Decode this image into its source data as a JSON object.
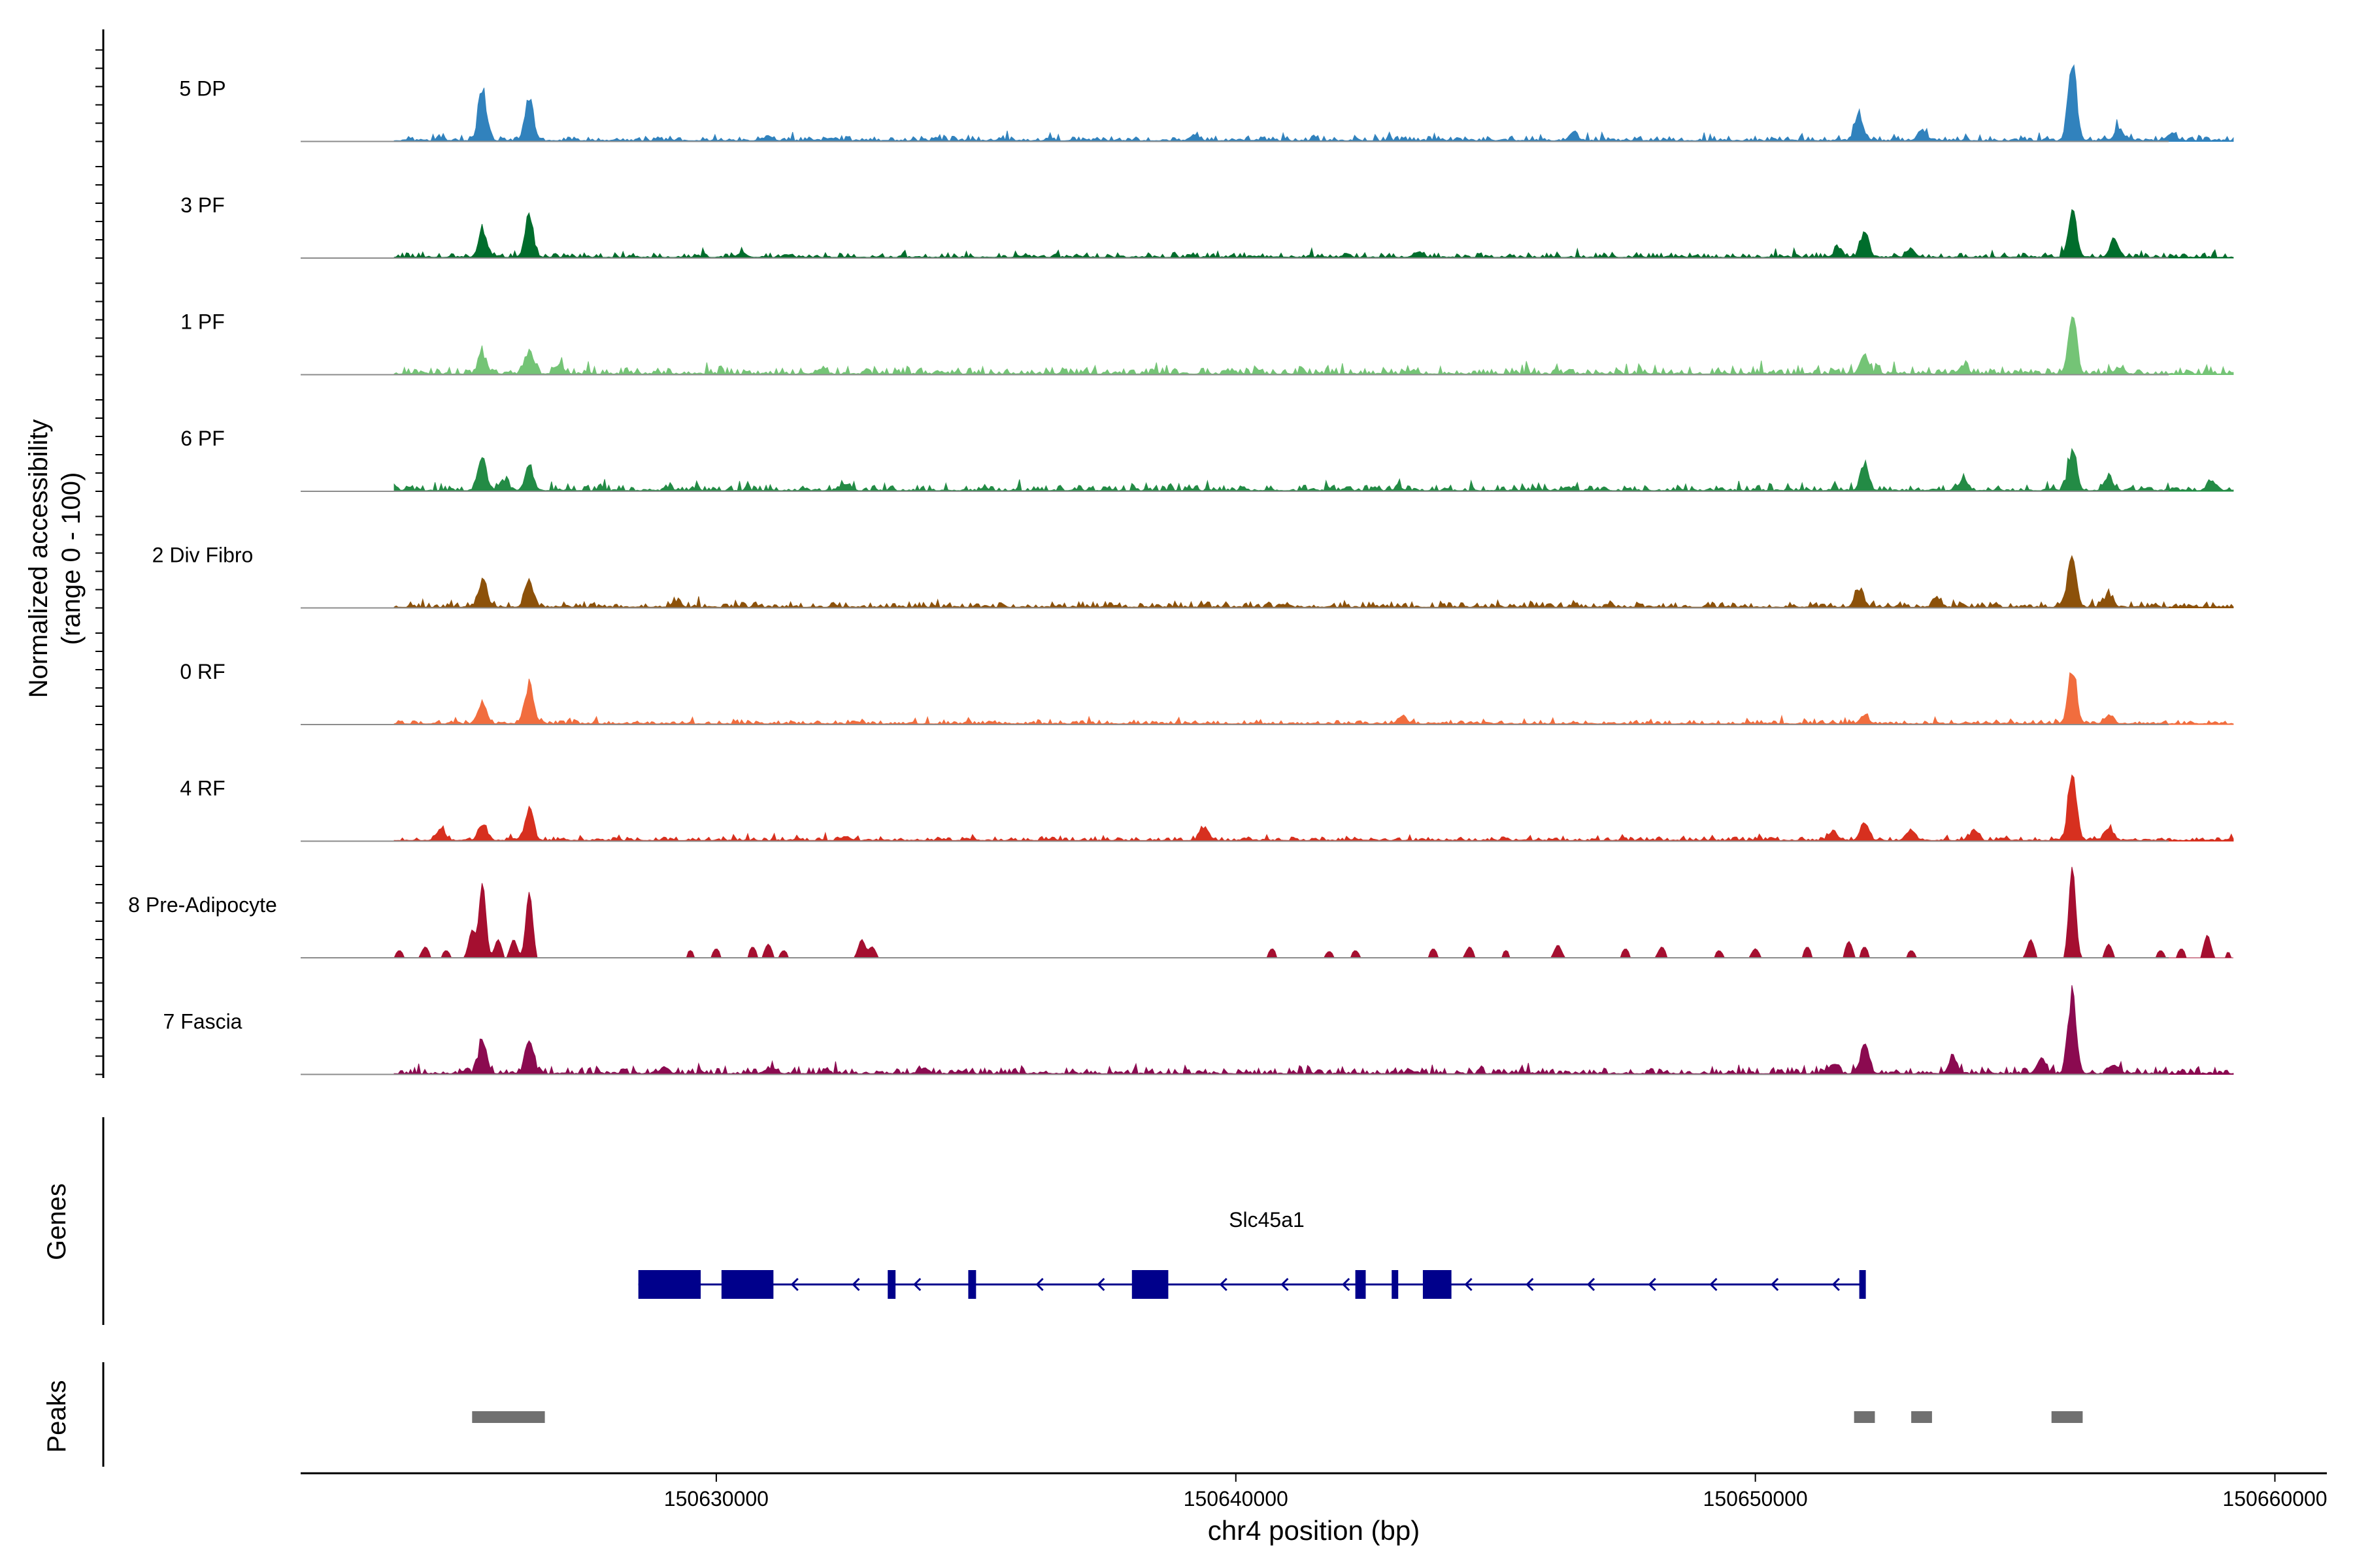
{
  "chart_data": {
    "type": "area",
    "ylabel_line1": "Normalized accessibility",
    "ylabel_line2": "(range 0 - 100)",
    "xlabel": "chr4 position (bp)",
    "xlim": [
      150622000,
      150661000
    ],
    "x_ticks": [
      150630000,
      150640000,
      150650000,
      150660000
    ],
    "x_tick_labels": [
      "150630000",
      "150640000",
      "150650000",
      "150660000"
    ],
    "data_start": 150623800,
    "data_end": 150659200,
    "tracks": [
      {
        "name": "5 DP",
        "color": "#3182bd",
        "noise": 0.05,
        "seed": 11,
        "peaks": [
          [
            150625500,
            0.62
          ],
          [
            150626400,
            0.55
          ],
          [
            150631000,
            0.06
          ],
          [
            150639200,
            0.07
          ],
          [
            150646500,
            0.1
          ],
          [
            150652000,
            0.33
          ],
          [
            150653200,
            0.13
          ],
          [
            150656100,
            1.0
          ],
          [
            150657000,
            0.15
          ],
          [
            150658000,
            0.08
          ]
        ]
      },
      {
        "name": "3 PF",
        "color": "#006d2c",
        "noise": 0.05,
        "seed": 23,
        "peaks": [
          [
            150625500,
            0.33
          ],
          [
            150626400,
            0.52
          ],
          [
            150630500,
            0.06
          ],
          [
            150643500,
            0.07
          ],
          [
            150651600,
            0.12
          ],
          [
            150652100,
            0.32
          ],
          [
            150653000,
            0.1
          ],
          [
            150656100,
            0.62
          ],
          [
            150656900,
            0.2
          ]
        ]
      },
      {
        "name": "1 PF",
        "color": "#74c476",
        "noise": 0.07,
        "seed": 37,
        "peaks": [
          [
            150625500,
            0.24
          ],
          [
            150626400,
            0.26
          ],
          [
            150627000,
            0.08
          ],
          [
            150632000,
            0.05
          ],
          [
            150652100,
            0.24
          ],
          [
            150654000,
            0.1
          ],
          [
            150656100,
            0.7
          ],
          [
            150657000,
            0.08
          ]
        ]
      },
      {
        "name": "6 PF",
        "color": "#238b45",
        "noise": 0.06,
        "seed": 41,
        "peaks": [
          [
            150625500,
            0.38
          ],
          [
            150626400,
            0.3
          ],
          [
            150625900,
            0.12
          ],
          [
            150632500,
            0.08
          ],
          [
            150652100,
            0.3
          ],
          [
            150654000,
            0.14
          ],
          [
            150656100,
            0.52
          ],
          [
            150656800,
            0.15
          ],
          [
            150658800,
            0.1
          ]
        ]
      },
      {
        "name": "2 Div Fibro",
        "color": "#8c510a",
        "noise": 0.06,
        "seed": 53,
        "peaks": [
          [
            150625500,
            0.33
          ],
          [
            150626400,
            0.32
          ],
          [
            150629200,
            0.06
          ],
          [
            150652000,
            0.23
          ],
          [
            150653500,
            0.08
          ],
          [
            150656100,
            0.65
          ],
          [
            150656800,
            0.15
          ]
        ]
      },
      {
        "name": "0 RF",
        "color": "#f16d3e",
        "noise": 0.04,
        "seed": 67,
        "peaks": [
          [
            150625500,
            0.28
          ],
          [
            150626400,
            0.5
          ],
          [
            150643200,
            0.1
          ],
          [
            150652100,
            0.1
          ],
          [
            150656100,
            0.72
          ],
          [
            150656800,
            0.1
          ]
        ]
      },
      {
        "name": "4 RF",
        "color": "#d7301f",
        "noise": 0.04,
        "seed": 79,
        "peaks": [
          [
            150624700,
            0.16
          ],
          [
            150625500,
            0.2
          ],
          [
            150626400,
            0.38
          ],
          [
            150632500,
            0.05
          ],
          [
            150639400,
            0.17
          ],
          [
            150651500,
            0.12
          ],
          [
            150652100,
            0.22
          ],
          [
            150653000,
            0.12
          ],
          [
            150654200,
            0.1
          ],
          [
            150656100,
            0.95
          ],
          [
            150656800,
            0.15
          ]
        ]
      },
      {
        "name": "8 Pre-Adipocyte",
        "color": "#a50f30",
        "noise": 0.0,
        "seed": 83,
        "blocky": true,
        "peaks": [
          [
            150623900,
            0.08
          ],
          [
            150624400,
            0.12
          ],
          [
            150624800,
            0.08
          ],
          [
            150625300,
            0.3
          ],
          [
            150625500,
            0.82
          ],
          [
            150625800,
            0.2
          ],
          [
            150626100,
            0.2
          ],
          [
            150626400,
            0.72
          ],
          [
            150629500,
            0.08
          ],
          [
            150630000,
            0.1
          ],
          [
            150630700,
            0.12
          ],
          [
            150631000,
            0.15
          ],
          [
            150631300,
            0.08
          ],
          [
            150632800,
            0.2
          ],
          [
            150633000,
            0.12
          ],
          [
            150640700,
            0.1
          ],
          [
            150641800,
            0.07
          ],
          [
            150642300,
            0.08
          ],
          [
            150643800,
            0.1
          ],
          [
            150644500,
            0.12
          ],
          [
            150645200,
            0.08
          ],
          [
            150646200,
            0.14
          ],
          [
            150647500,
            0.1
          ],
          [
            150648200,
            0.12
          ],
          [
            150649300,
            0.08
          ],
          [
            150650000,
            0.1
          ],
          [
            150651000,
            0.12
          ],
          [
            150651800,
            0.18
          ],
          [
            150652100,
            0.12
          ],
          [
            150653000,
            0.08
          ],
          [
            150655300,
            0.2
          ],
          [
            150656100,
            1.0
          ],
          [
            150656800,
            0.15
          ],
          [
            150657800,
            0.08
          ],
          [
            150658200,
            0.1
          ],
          [
            150658700,
            0.25
          ],
          [
            150659100,
            0.06
          ]
        ]
      },
      {
        "name": "7 Fascia",
        "color": "#8b0a50",
        "noise": 0.07,
        "seed": 97,
        "peaks": [
          [
            150625500,
            0.42
          ],
          [
            150626400,
            0.38
          ],
          [
            150629000,
            0.08
          ],
          [
            150631000,
            0.06
          ],
          [
            150634000,
            0.07
          ],
          [
            150651500,
            0.12
          ],
          [
            150652100,
            0.35
          ],
          [
            150653800,
            0.18
          ],
          [
            150655500,
            0.2
          ],
          [
            150656100,
            1.0
          ],
          [
            150656900,
            0.12
          ]
        ]
      }
    ],
    "genes_label": "Genes",
    "gene": {
      "name": "Slc45a1",
      "start": 150628500,
      "end": 150652100,
      "strand": "-",
      "color": "#00008b",
      "exons": [
        [
          150628500,
          150629700
        ],
        [
          150630100,
          150631100
        ],
        [
          150633300,
          150633450
        ],
        [
          150634850,
          150635000
        ],
        [
          150638000,
          150638700
        ],
        [
          150642300,
          150642500
        ],
        [
          150643000,
          150643100
        ],
        [
          150643600,
          150644150
        ],
        [
          150652000,
          150652100
        ]
      ]
    },
    "peaks_label": "Peaks",
    "peak_regions": [
      [
        150625300,
        150626700
      ],
      [
        150651900,
        150652300
      ],
      [
        150653000,
        150653400
      ],
      [
        150655700,
        150656300
      ]
    ],
    "peak_color": "#707070"
  }
}
